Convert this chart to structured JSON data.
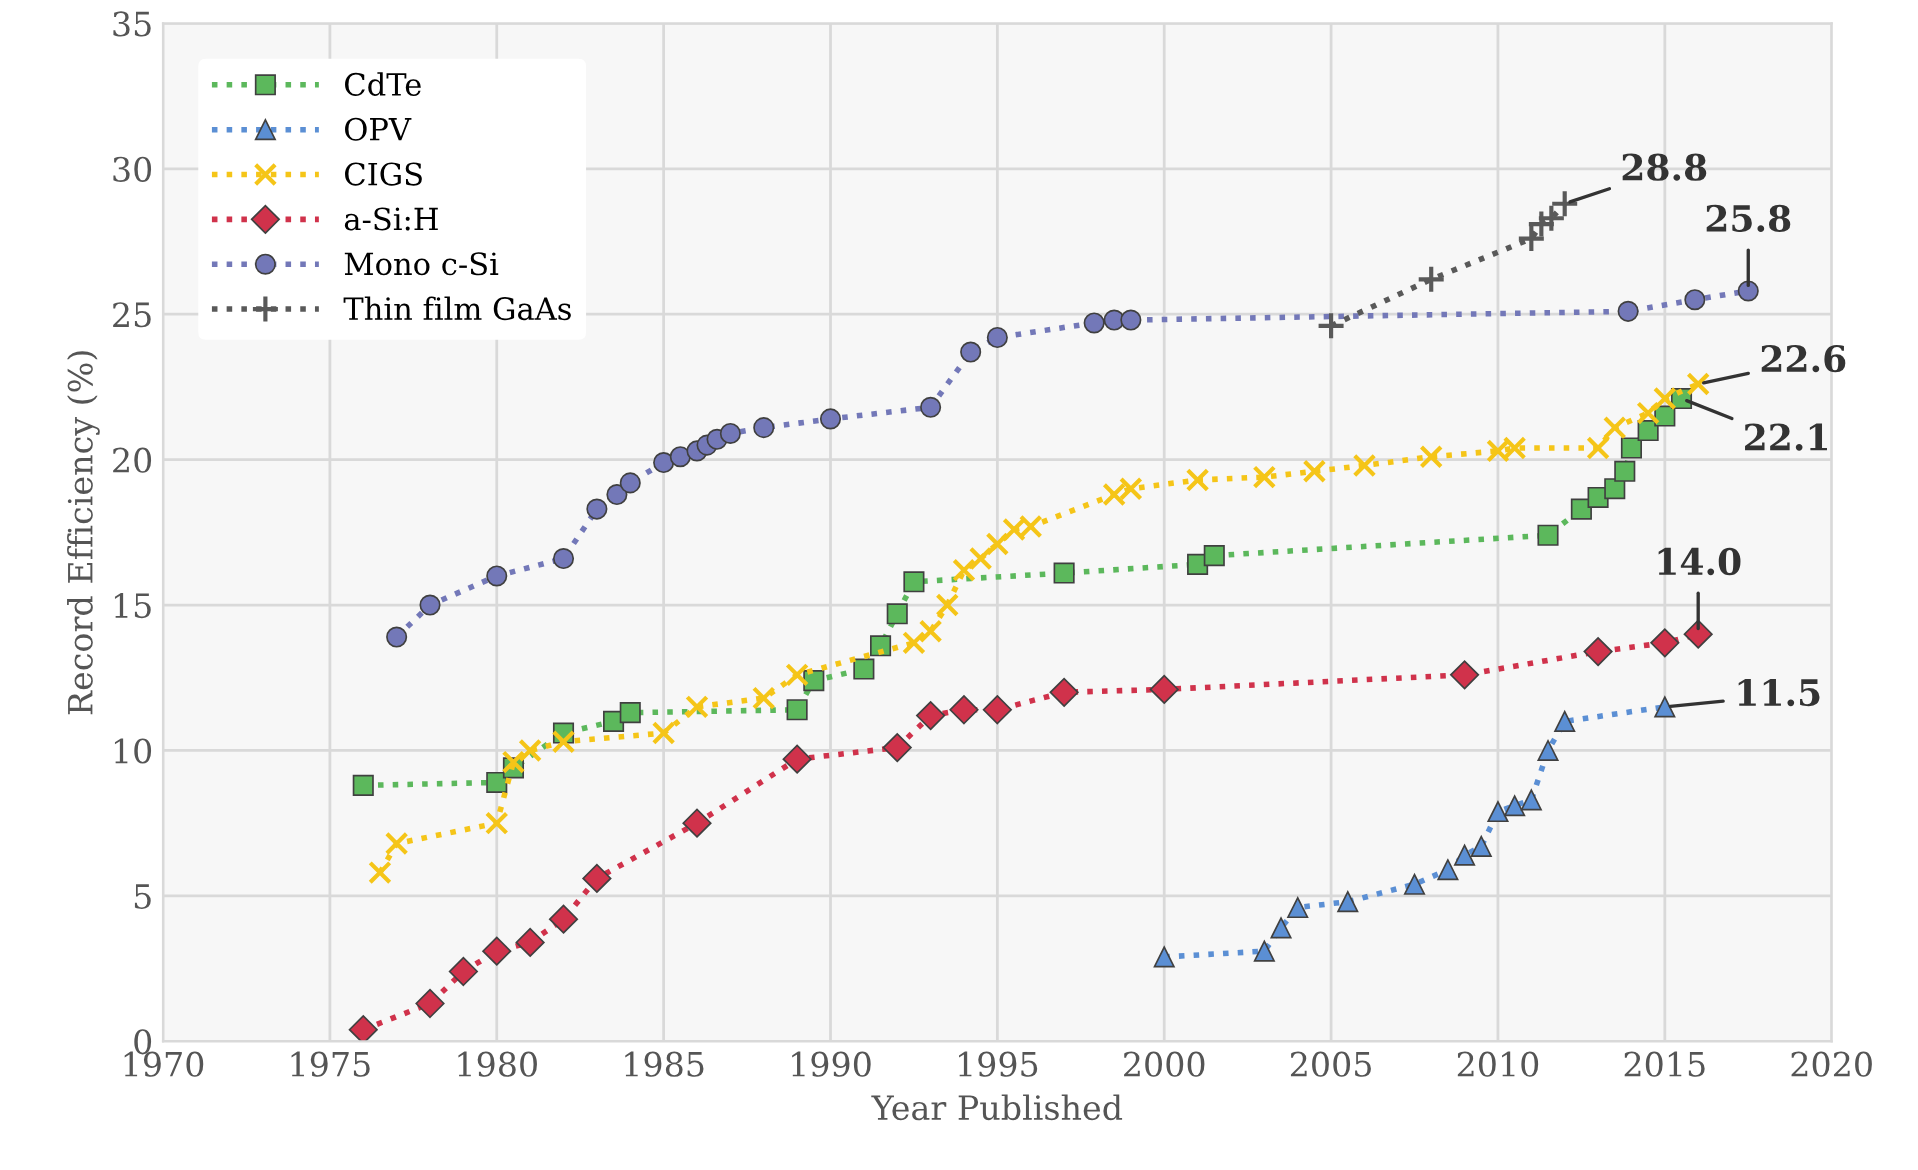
{
  "chart_data": {
    "type": "line",
    "xlabel": "Year Published",
    "ylabel": "Record Efficiency (%)",
    "xlim": [
      1970,
      2020
    ],
    "xticks": [
      1970,
      1975,
      1980,
      1985,
      1990,
      1995,
      2000,
      2005,
      2010,
      2015,
      2020
    ],
    "ylim": [
      0,
      35
    ],
    "yticks": [
      0,
      5,
      10,
      15,
      20,
      25,
      30,
      35
    ],
    "grid": true,
    "legend": "top left",
    "line_style": "dotted",
    "series": [
      {
        "name": "CdTe",
        "color": "#5cb85c",
        "marker": "square",
        "x": [
          1976,
          1980,
          1980.5,
          1982,
          1983.5,
          1984,
          1989,
          1989.5,
          1991,
          1991.5,
          1992,
          1992.5,
          1997,
          2001,
          2001.5,
          2011.5,
          2012.5,
          2013,
          2013.5,
          2013.8,
          2014,
          2014.5,
          2015,
          2015.5
        ],
        "values": [
          8.8,
          8.9,
          9.4,
          10.6,
          11.0,
          11.3,
          11.4,
          12.4,
          12.8,
          13.6,
          14.7,
          15.8,
          16.1,
          16.4,
          16.7,
          17.4,
          18.3,
          18.7,
          19.0,
          19.6,
          20.4,
          21.0,
          21.5,
          22.1
        ]
      },
      {
        "name": "OPV",
        "color": "#5b8fd4",
        "marker": "triangle",
        "x": [
          2000,
          2003,
          2003.5,
          2004,
          2005.5,
          2007.5,
          2008.5,
          2009,
          2009.5,
          2010,
          2010.5,
          2011,
          2011.5,
          2012,
          2015
        ],
        "values": [
          2.9,
          3.1,
          3.9,
          4.6,
          4.8,
          5.4,
          5.9,
          6.4,
          6.7,
          7.9,
          8.1,
          8.3,
          10.0,
          11.0,
          11.5
        ]
      },
      {
        "name": "CIGS",
        "color": "#f5c518",
        "marker": "cross",
        "x": [
          1976.5,
          1977,
          1980,
          1980.5,
          1981,
          1982,
          1985,
          1986,
          1988,
          1989,
          1992.5,
          1993,
          1993.5,
          1994,
          1994.5,
          1995,
          1995.5,
          1996,
          1998.5,
          1999,
          2001,
          2003,
          2004.5,
          2006,
          2008,
          2010,
          2010.5,
          2013,
          2013.5,
          2014.5,
          2015,
          2016
        ],
        "values": [
          5.8,
          6.8,
          7.5,
          9.6,
          10.0,
          10.3,
          10.6,
          11.5,
          11.8,
          12.6,
          13.7,
          14.1,
          15.0,
          16.2,
          16.6,
          17.1,
          17.6,
          17.7,
          18.8,
          19.0,
          19.3,
          19.4,
          19.6,
          19.8,
          20.1,
          20.3,
          20.4,
          20.4,
          21.1,
          21.6,
          22.1,
          22.6
        ]
      },
      {
        "name": "a-Si:H",
        "color": "#d0324b",
        "marker": "diamond",
        "x": [
          1976,
          1978,
          1979,
          1980,
          1981,
          1982,
          1983,
          1986,
          1989,
          1992,
          1993,
          1994,
          1995,
          1997,
          2000,
          2009,
          2013,
          2015,
          2016
        ],
        "values": [
          0.4,
          1.3,
          2.4,
          3.1,
          3.4,
          4.2,
          5.6,
          7.5,
          9.7,
          10.1,
          11.2,
          11.4,
          11.4,
          12.0,
          12.1,
          12.6,
          13.4,
          13.7,
          14.0
        ]
      },
      {
        "name": "Mono c-Si",
        "color": "#7378b8",
        "marker": "circle",
        "x": [
          1977,
          1978,
          1980,
          1982,
          1983,
          1983.6,
          1984,
          1985,
          1985.5,
          1986,
          1986.3,
          1986.6,
          1987,
          1988,
          1990,
          1993,
          1994.2,
          1995,
          1997.9,
          1998.5,
          1999,
          2013.9,
          2015.9,
          2017.5
        ],
        "values": [
          13.9,
          15.0,
          16.0,
          16.6,
          18.3,
          18.8,
          19.2,
          19.9,
          20.1,
          20.3,
          20.5,
          20.7,
          20.9,
          21.1,
          21.4,
          21.8,
          23.7,
          24.2,
          24.7,
          24.8,
          24.8,
          25.1,
          25.5,
          25.8
        ]
      },
      {
        "name": "Thin film GaAs",
        "color": "#595959",
        "marker": "plus",
        "x": [
          2005,
          2008,
          2011,
          2011.3,
          2011.6,
          2012
        ],
        "values": [
          24.6,
          26.2,
          27.6,
          28.1,
          28.3,
          28.8
        ]
      }
    ],
    "annotations": [
      {
        "text": "28.8",
        "x": 2012,
        "y": 28.8
      },
      {
        "text": "25.8",
        "x": 2017.5,
        "y": 25.8
      },
      {
        "text": "22.6",
        "x": 2016,
        "y": 22.6
      },
      {
        "text": "22.1",
        "x": 2015.5,
        "y": 22.1
      },
      {
        "text": "14.0",
        "x": 2016,
        "y": 14.0
      },
      {
        "text": "11.5",
        "x": 2015,
        "y": 11.5
      }
    ]
  }
}
